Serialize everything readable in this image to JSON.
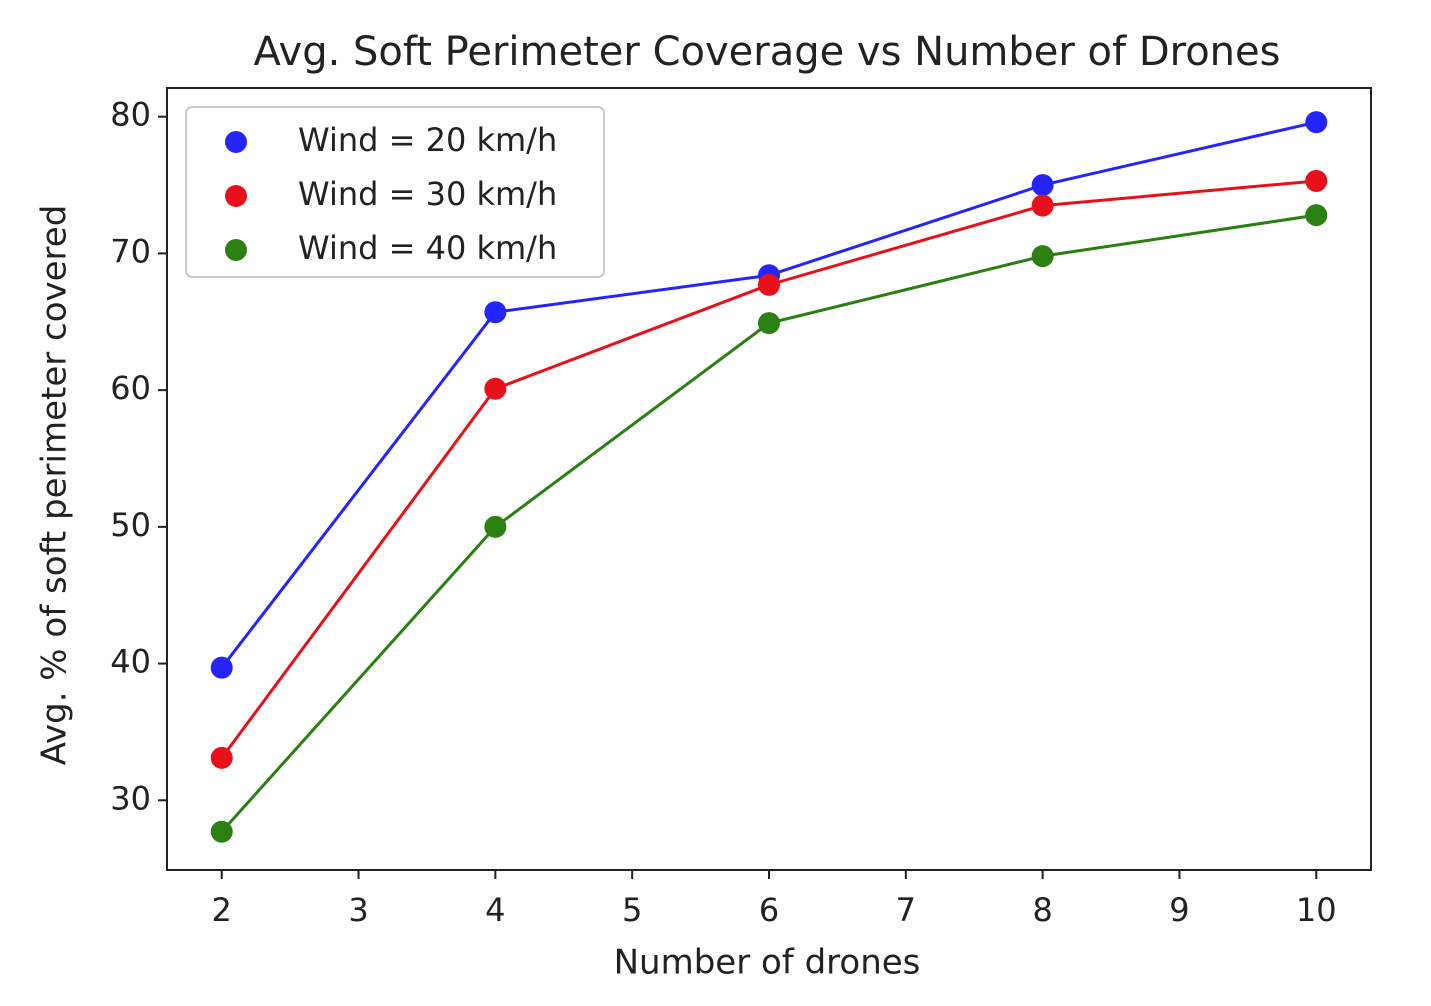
{
  "chart_data": {
    "type": "line",
    "title": "Avg. Soft Perimeter Coverage vs Number of Drones",
    "x_label": "Number of drones",
    "y_label": "Avg. % of soft perimeter covered",
    "x": [
      2,
      4,
      6,
      8,
      10
    ],
    "series": [
      {
        "name": "Wind = 20 km/h",
        "color": "#2424ff",
        "values": [
          39.7,
          65.7,
          68.4,
          75.0,
          79.6
        ]
      },
      {
        "name": "Wind = 30 km/h",
        "color": "#e8101a",
        "values": [
          33.1,
          60.1,
          67.7,
          73.5,
          75.3
        ]
      },
      {
        "name": "Wind = 40 km/h",
        "color": "#2a8010",
        "values": [
          27.7,
          50.0,
          64.9,
          69.8,
          72.8
        ]
      }
    ],
    "xlim": [
      1.6,
      10.4
    ],
    "xticks": [
      2,
      3,
      4,
      5,
      6,
      7,
      8,
      9,
      10
    ],
    "ylim": [
      24.9,
      82.1
    ],
    "yticks": [
      30,
      40,
      50,
      60,
      70,
      80
    ],
    "legend": "upper left",
    "grid": false
  }
}
